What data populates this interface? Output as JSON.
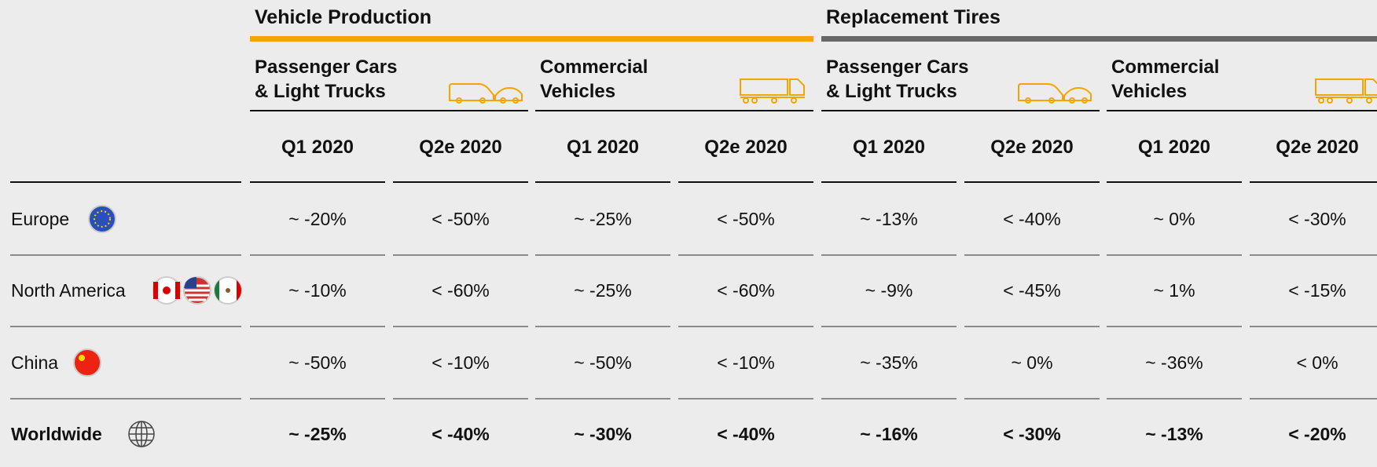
{
  "groups": [
    {
      "title": "Vehicle Production",
      "subgroups": [
        {
          "lines": [
            "Passenger Cars",
            "& Light Trucks"
          ]
        },
        {
          "lines": [
            "Commercial",
            "Vehicles"
          ]
        }
      ]
    },
    {
      "title": "Replacement Tires",
      "subgroups": [
        {
          "lines": [
            "Passenger Cars",
            "& Light Trucks"
          ]
        },
        {
          "lines": [
            "Commercial",
            "Vehicles"
          ]
        }
      ]
    }
  ],
  "columns": [
    "Q1 2020",
    "Q2e 2020",
    "Q1 2020",
    "Q2e 2020",
    "Q1 2020",
    "Q2e 2020",
    "Q1 2020",
    "Q2e 2020"
  ],
  "rows": [
    {
      "region": "Europe",
      "values": [
        "~ -20%",
        "< -50%",
        "~ -25%",
        "< -50%",
        "~ -13%",
        "< -40%",
        "~ 0%",
        "< -30%"
      ]
    },
    {
      "region": "North America",
      "values": [
        "~ -10%",
        "< -60%",
        "~ -25%",
        "< -60%",
        "~ -9%",
        "< -45%",
        "~ 1%",
        "< -15%"
      ]
    },
    {
      "region": "China",
      "values": [
        "~ -50%",
        "< -10%",
        "~ -50%",
        "< -10%",
        "~ -35%",
        "~ 0%",
        "~ -36%",
        "< 0%"
      ]
    },
    {
      "region": "Worldwide",
      "values": [
        "~ -25%",
        "< -40%",
        "~ -30%",
        "< -40%",
        "~ -16%",
        "< -30%",
        "~ -13%",
        "< -20%"
      ]
    }
  ]
}
